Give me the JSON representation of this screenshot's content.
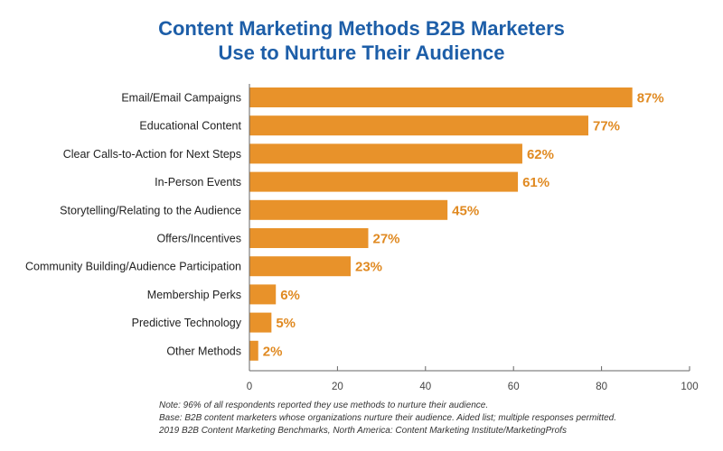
{
  "chart_data": {
    "type": "bar",
    "orientation": "horizontal",
    "title_lines": [
      "Content Marketing Methods B2B Marketers",
      "Use to Nurture Their Audience"
    ],
    "categories": [
      "Email/Email Campaigns",
      "Educational Content",
      "Clear Calls-to-Action for Next Steps",
      "In-Person Events",
      "Storytelling/Relating to the Audience",
      "Offers/Incentives",
      "Community Building/Audience Participation",
      "Membership Perks",
      "Predictive Technology",
      "Other Methods"
    ],
    "values": [
      87,
      77,
      62,
      61,
      45,
      27,
      23,
      6,
      5,
      2
    ],
    "data_labels": [
      "87%",
      "77%",
      "62%",
      "61%",
      "45%",
      "27%",
      "23%",
      "6%",
      "5%",
      "2%"
    ],
    "xlim": [
      0,
      100
    ],
    "xticks": [
      "0",
      "20",
      "40",
      "60",
      "80",
      "100"
    ],
    "grid": false,
    "bar_color": "#e8922a",
    "label_color": "#e08a22",
    "title_color": "#1d5ea8"
  },
  "notes": [
    "Note: 96% of all respondents reported they use methods to nurture their audience.",
    "Base: B2B content marketers whose organizations nurture their audience. Aided list; multiple responses permitted.",
    "2019 B2B Content Marketing Benchmarks, North America: Content Marketing Institute/MarketingProfs"
  ]
}
